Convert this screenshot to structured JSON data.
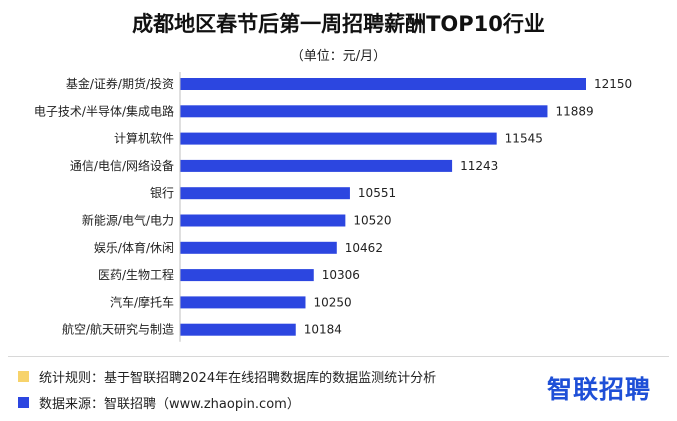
{
  "chart_data": {
    "type": "bar",
    "orientation": "horizontal",
    "title": "成都地区春节后第一周招聘薪酬TOP10行业",
    "subtitle": "（单位：元/月）",
    "categories": [
      "基金/证券/期货/投资",
      "电子技术/半导体/集成电路",
      "计算机软件",
      "通信/电信/网络设备",
      "银行",
      "新能源/电气/电力",
      "娱乐/体育/休闲",
      "医药/生物工程",
      "汽车/摩托车",
      "航空/航天研究与制造"
    ],
    "values": [
      12150,
      11889,
      11545,
      11243,
      10551,
      10520,
      10462,
      10306,
      10250,
      10184
    ],
    "xlim": [
      9400,
      12150
    ],
    "bar_color": "#2c46e0",
    "grid": false,
    "data_labels": true
  },
  "notes": [
    {
      "text": "统计规则：基于智联招聘2024年在线招聘数据库的数据监测统计分析",
      "color": "#f7d36b"
    },
    {
      "text": "数据来源：智联招聘（www.zhaopin.com）",
      "color": "#2c46e0"
    }
  ],
  "logo_text": "智联招聘"
}
